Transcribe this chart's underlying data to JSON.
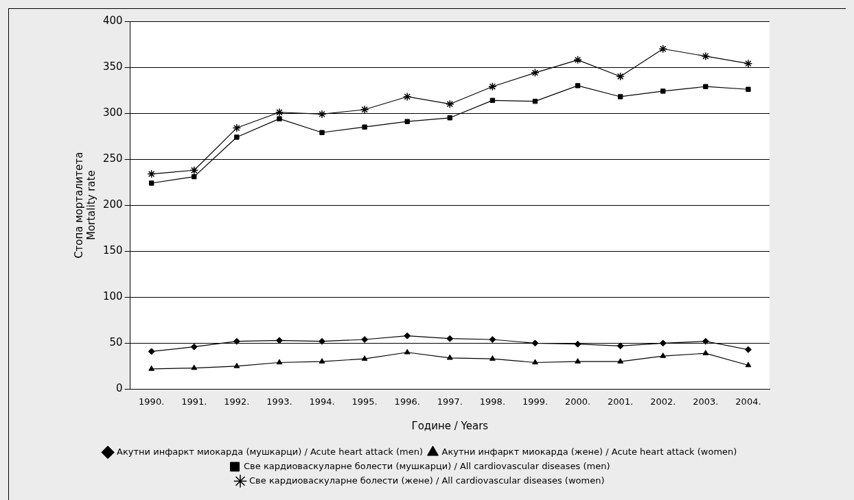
{
  "chart_data": {
    "type": "line",
    "xlabel": "Године / Years",
    "ylabel": "Стопа морталитета\nMortality rate",
    "categories": [
      "1990.",
      "1991.",
      "1992.",
      "1993.",
      "1994.",
      "1995.",
      "1996.",
      "1997.",
      "1998.",
      "1999.",
      "2000.",
      "2001.",
      "2002.",
      "2003.",
      "2004."
    ],
    "series": [
      {
        "name": "Акутни инфаркт миокарда (мушкарци) / Acute heart attack (men)",
        "color": "#000000",
        "marker": "diamond",
        "values": [
          41,
          46,
          52,
          53,
          52,
          54,
          58,
          55,
          54,
          50,
          49,
          47,
          50,
          52,
          43
        ]
      },
      {
        "name": "Акутни инфаркт миокарда (жене) / Acute heart attack (women)",
        "color": "#000000",
        "marker": "triangle",
        "values": [
          22,
          23,
          25,
          29,
          30,
          33,
          40,
          34,
          33,
          29,
          30,
          30,
          36,
          39,
          26
        ]
      },
      {
        "name": "Све кардиоваскуларне болести (мушкарци) / All cardiovascular diseases (men)",
        "color": "#000000",
        "marker": "square",
        "values": [
          224,
          231,
          274,
          294,
          279,
          285,
          291,
          295,
          314,
          313,
          330,
          318,
          324,
          329,
          326
        ]
      },
      {
        "name": "Све кардиоваскуларне болести (жене) / All cardiovascular diseases (women)",
        "color": "#000000",
        "marker": "star",
        "values": [
          234,
          238,
          284,
          301,
          299,
          304,
          318,
          310,
          329,
          344,
          358,
          340,
          370,
          362,
          354
        ]
      }
    ],
    "ylim": [
      0,
      400
    ],
    "yticks": [
      0,
      50,
      100,
      150,
      200,
      250,
      300,
      350,
      400
    ],
    "grid": "y",
    "legend": "bottom",
    "line_style": "solid"
  }
}
